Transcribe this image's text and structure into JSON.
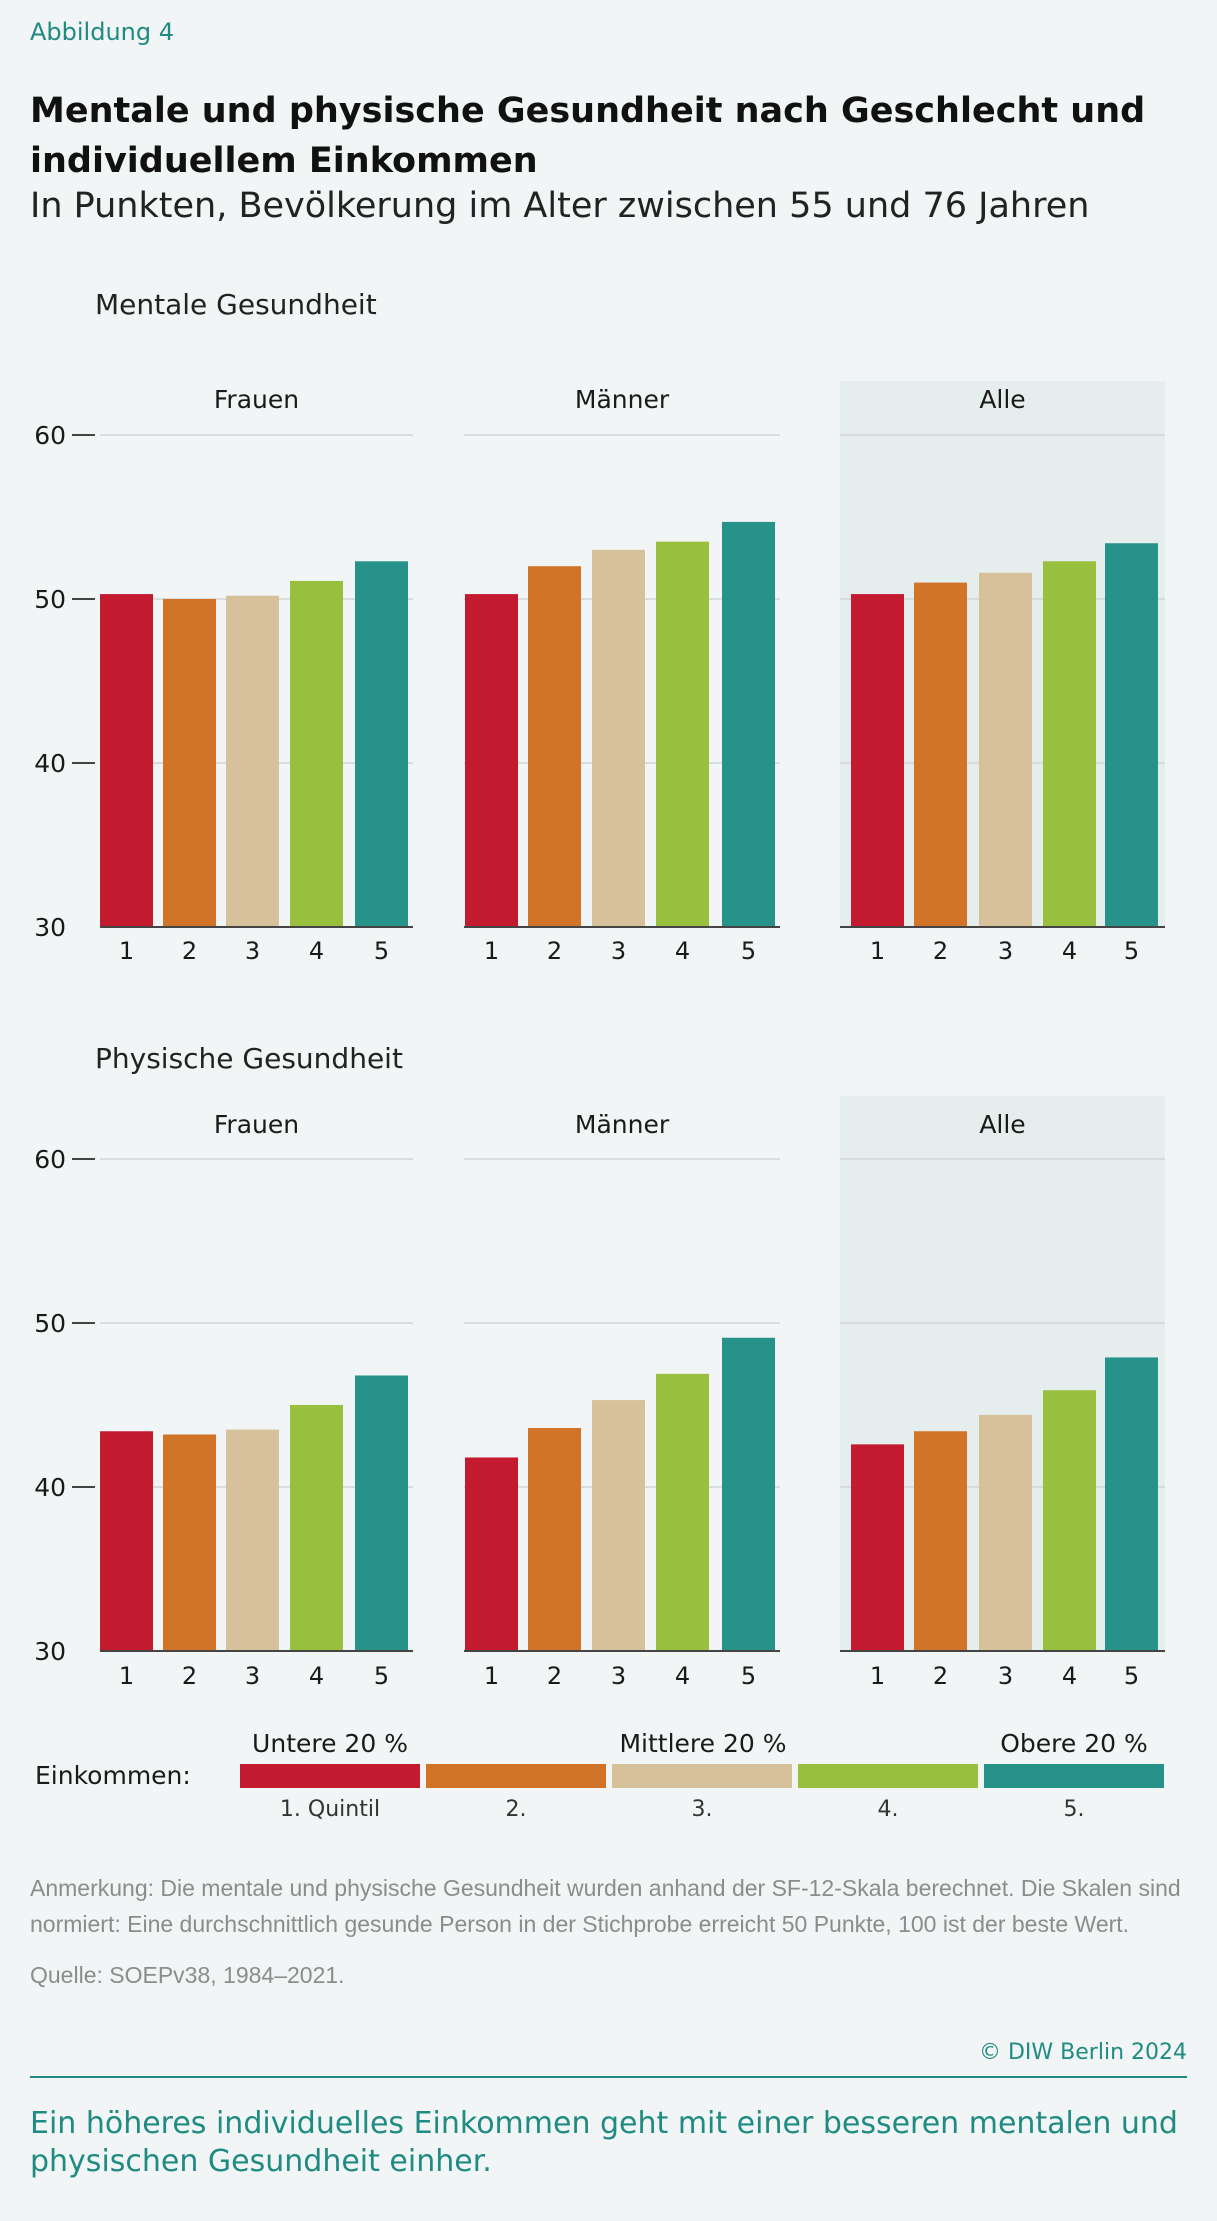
{
  "figure_label": "Abbildung 4",
  "title": "Mentale und physische Gesundheit nach Geschlecht und individuellem Einkommen",
  "subtitle": "In Punkten, Bevölkerung im Alter zwischen 55 und 76 Jahren",
  "colors": {
    "quintiles": [
      "#c41a30",
      "#d17428",
      "#d6c19a",
      "#98c03e",
      "#27928a"
    ],
    "accent": "#1f8b82",
    "highlight_panel": "#e6eeed",
    "gridline": "#cfd5d5",
    "axis": "#444444"
  },
  "chart_data": [
    {
      "type": "bar",
      "title": "Mentale Gesundheit",
      "ylim": [
        30,
        60
      ],
      "yticks": [
        30,
        40,
        50,
        60
      ],
      "grid": true,
      "categories": [
        "1",
        "2",
        "3",
        "4",
        "5"
      ],
      "panels": [
        {
          "name": "Frauen",
          "values": [
            50.3,
            50.0,
            50.2,
            51.1,
            52.3
          ],
          "highlight": false
        },
        {
          "name": "Männer",
          "values": [
            50.3,
            52.0,
            53.0,
            53.5,
            54.7
          ],
          "highlight": false
        },
        {
          "name": "Alle",
          "values": [
            50.3,
            51.0,
            51.6,
            52.3,
            53.4
          ],
          "highlight": true
        }
      ]
    },
    {
      "type": "bar",
      "title": "Physische Gesundheit",
      "ylim": [
        30,
        60
      ],
      "yticks": [
        30,
        40,
        50,
        60
      ],
      "grid": true,
      "categories": [
        "1",
        "2",
        "3",
        "4",
        "5"
      ],
      "panels": [
        {
          "name": "Frauen",
          "values": [
            43.4,
            43.2,
            43.5,
            45.0,
            46.8
          ],
          "highlight": false
        },
        {
          "name": "Männer",
          "values": [
            41.8,
            43.6,
            45.3,
            46.9,
            49.1
          ],
          "highlight": false
        },
        {
          "name": "Alle",
          "values": [
            42.6,
            43.4,
            44.4,
            45.9,
            47.9
          ],
          "highlight": true
        }
      ]
    }
  ],
  "legend": {
    "label": "Einkommen:",
    "top_labels": [
      "Untere 20 %",
      "Mittlere 20 %",
      "Obere 20 %"
    ],
    "items": [
      "1. Quintil",
      "2.",
      "3.",
      "4.",
      "5."
    ]
  },
  "note": "Anmerkung: Die mentale und physische Gesundheit wurden anhand der SF-12-Skala berechnet. Die Skalen sind normiert: Eine durchschnittlich gesunde Person in der Stichprobe erreicht 50 Punkte, 100 ist der beste Wert.",
  "source": "Quelle: SOEPv38, 1984–2021.",
  "copyright": "© DIW Berlin 2024",
  "takeaway": "Ein höheres individuelles Einkommen geht mit einer besseren mentalen und physischen Gesundheit einher."
}
